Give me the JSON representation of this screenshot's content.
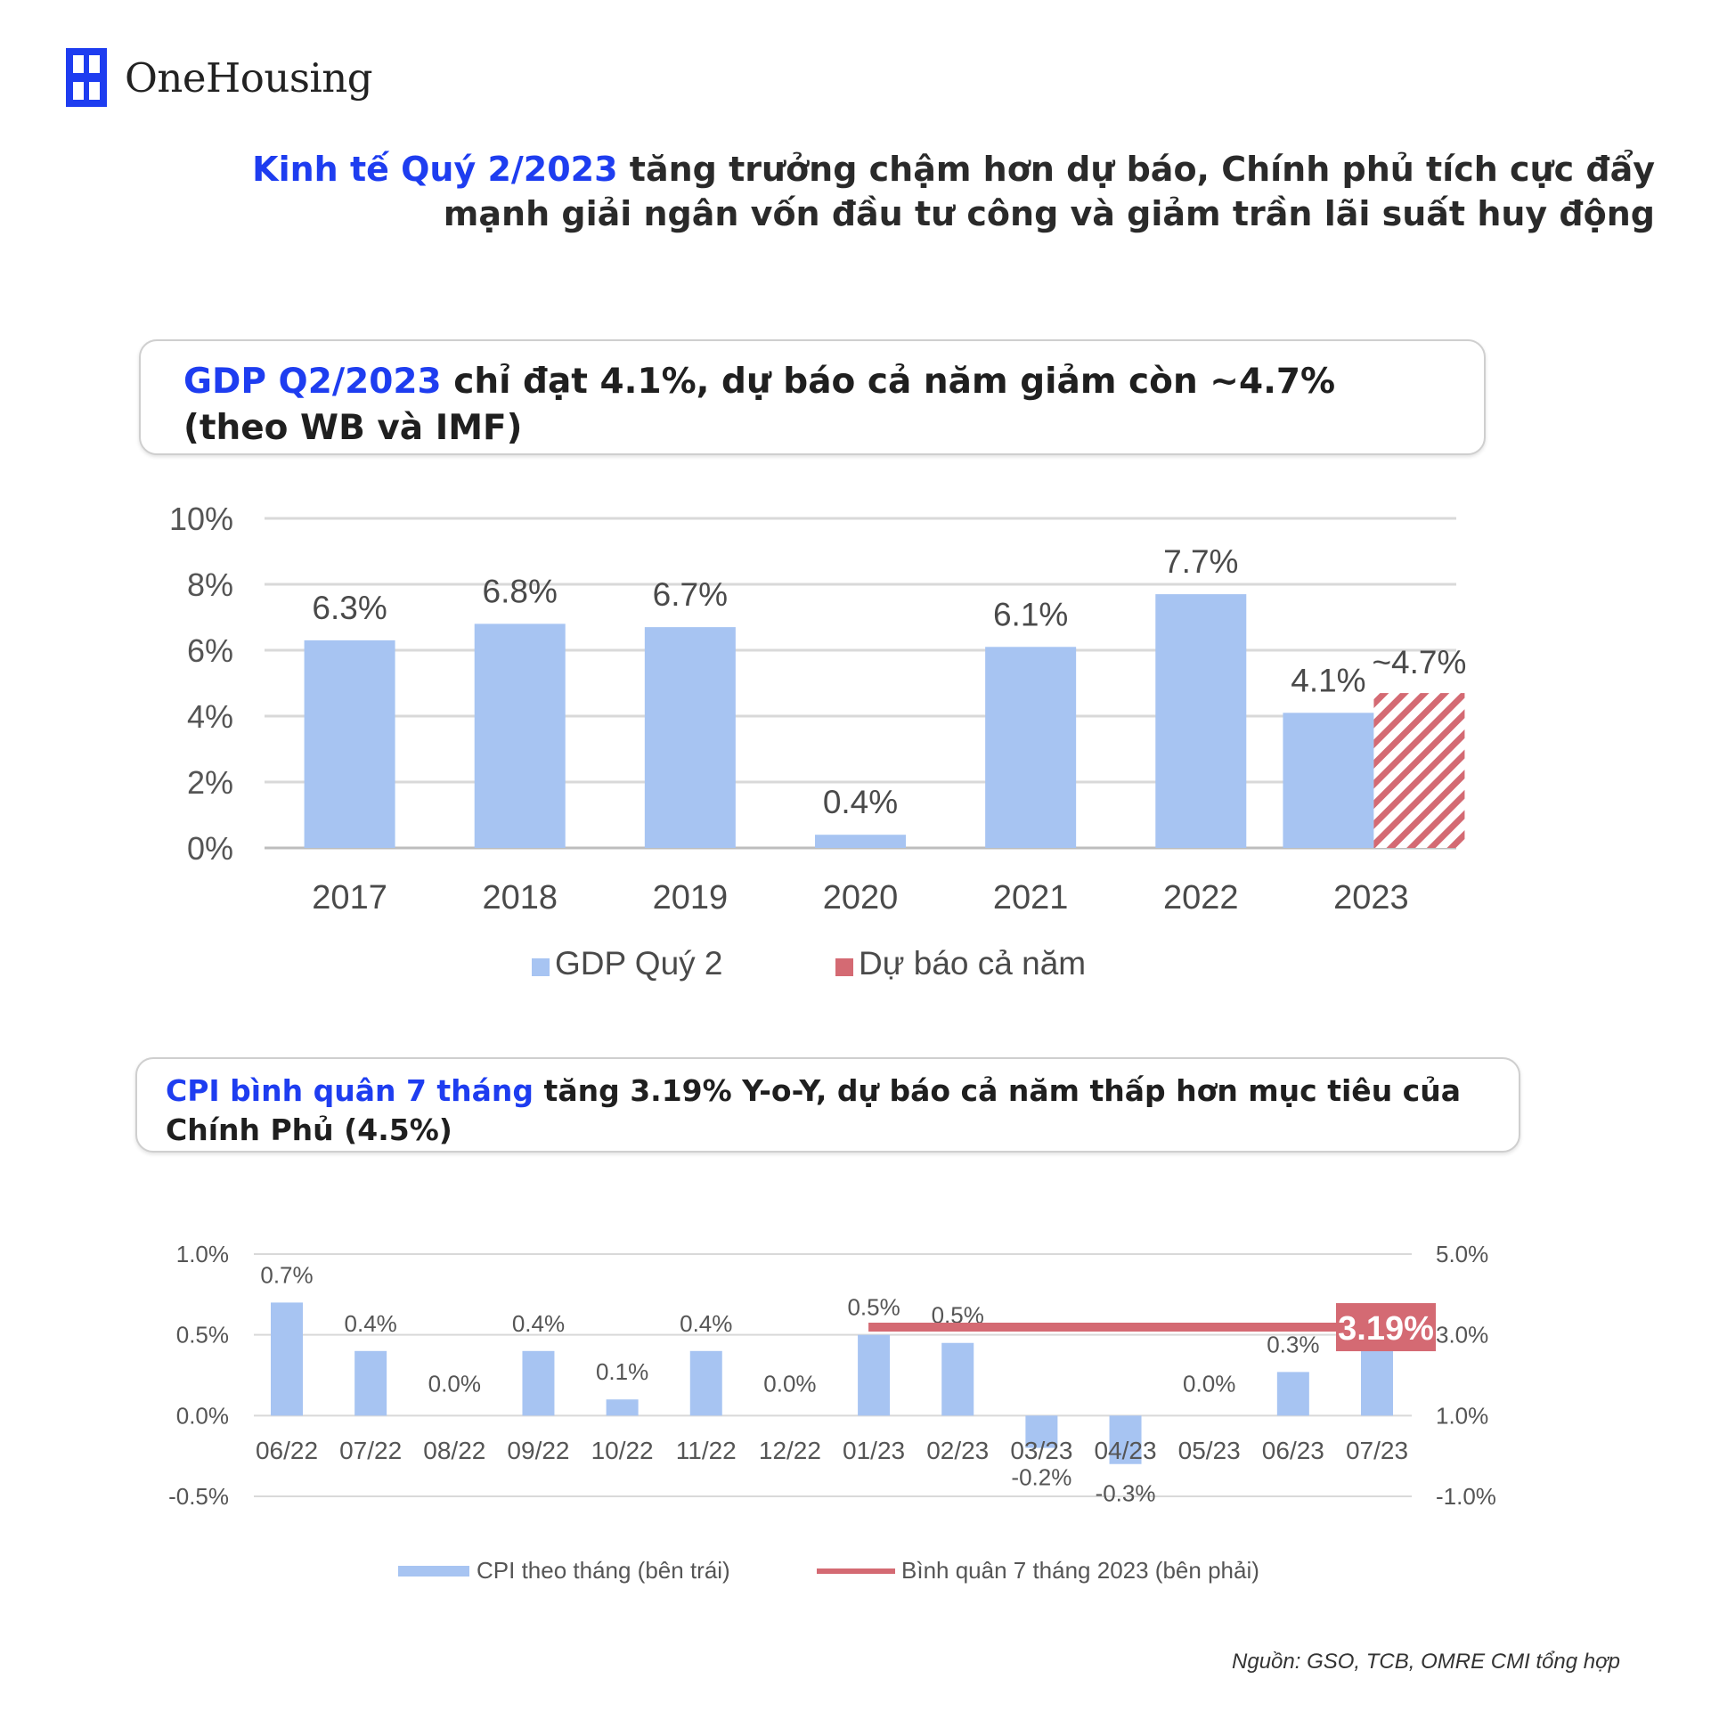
{
  "brand": {
    "name": "OneHousing"
  },
  "headline": {
    "highlight": "Kinh tế Quý 2/2023",
    "text": " tăng trưởng chậm hơn dự báo, Chính phủ tích cực đẩy mạnh giải ngân vốn đầu tư công và giảm trần lãi suất huy động"
  },
  "gdp_box": {
    "highlight": "GDP Q2/2023",
    "text": " chỉ đạt 4.1%, dự báo cả năm giảm còn ~4.7% (theo WB và IMF)"
  },
  "cpi_box": {
    "highlight": "CPI bình quân 7 tháng",
    "text": " tăng 3.19% Y-o-Y, dự báo cả năm thấp hơn mục tiêu của Chính Phủ (4.5%)"
  },
  "source": "Nguồn: GSO, TCB, OMRE CMI tổng hợp",
  "colors": {
    "bar": "#a7c4f2",
    "forecast": "#d46a73",
    "accent": "#1e3df0"
  },
  "chart_data": [
    {
      "type": "bar",
      "categories": [
        "2017",
        "2018",
        "2019",
        "2020",
        "2021",
        "2022",
        "2023"
      ],
      "series": [
        {
          "name": "GDP Quý 2",
          "values": [
            6.3,
            6.8,
            6.7,
            0.4,
            6.1,
            7.7,
            4.1
          ],
          "labels": [
            "6.3%",
            "6.8%",
            "6.7%",
            "0.4%",
            "6.1%",
            "7.7%",
            "4.1%"
          ]
        },
        {
          "name": "Dự báo cả năm",
          "values": [
            null,
            null,
            null,
            null,
            null,
            null,
            4.7
          ],
          "labels": [
            "",
            "",
            "",
            "",
            "",
            "",
            "~4.7%"
          ]
        }
      ],
      "yticks": [
        "0%",
        "2%",
        "4%",
        "6%",
        "8%",
        "10%"
      ],
      "ylim": [
        0,
        10
      ],
      "grid": true,
      "legend_position": "bottom"
    },
    {
      "type": "bar",
      "categories": [
        "06/22",
        "07/22",
        "08/22",
        "09/22",
        "10/22",
        "11/22",
        "12/22",
        "01/23",
        "02/23",
        "03/23",
        "04/23",
        "05/23",
        "06/23",
        "07/23"
      ],
      "series": [
        {
          "name": "CPI theo tháng (bên trái)",
          "axis": "left",
          "values": [
            0.7,
            0.4,
            0.0,
            0.4,
            0.1,
            0.4,
            0.0,
            0.5,
            0.45,
            -0.2,
            -0.3,
            0.0,
            0.27,
            0.45
          ],
          "labels": [
            "0.7%",
            "0.4%",
            "0.0%",
            "0.4%",
            "0.1%",
            "0.4%",
            "0.0%",
            "0.5%",
            "0.5%",
            "-0.2%",
            "-0.3%",
            "0.0%",
            "0.3%",
            "0.5%"
          ]
        },
        {
          "name": "Bình quân 7 tháng 2023 (bên phải)",
          "axis": "right",
          "type": "line",
          "from": "01/23",
          "value": 3.19,
          "label": "3.19%"
        }
      ],
      "yticks_left": [
        "-0.5%",
        "0.0%",
        "0.5%",
        "1.0%"
      ],
      "yticks_right": [
        "-1.0%",
        "1.0%",
        "3.0%",
        "5.0%"
      ],
      "ylim_left": [
        -0.5,
        1.0
      ],
      "ylim_right": [
        -1.0,
        5.0
      ],
      "grid": true,
      "legend_position": "bottom"
    }
  ]
}
